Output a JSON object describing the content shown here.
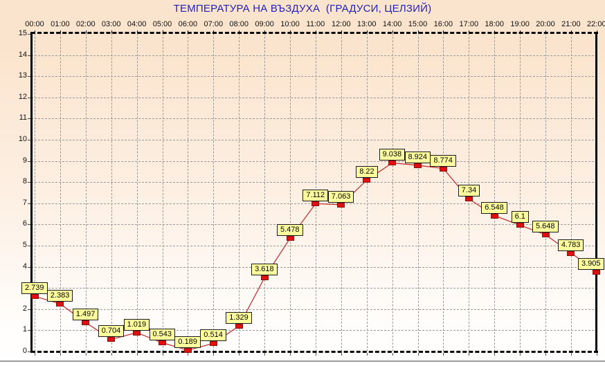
{
  "title": "ТЕМПЕРАТУРА НА ВЪЗДУХА  (ГРАДУСИ, ЦЕЛЗИЙ)",
  "chart_data": {
    "type": "line",
    "title": "ТЕМПЕРАТУРА НА ВЪЗДУХА  (ГРАДУСИ, ЦЕЛЗИЙ)",
    "x": [
      "00:00",
      "01:00",
      "02:00",
      "03:00",
      "04:00",
      "05:00",
      "06:00",
      "07:00",
      "08:00",
      "09:00",
      "10:00",
      "11:00",
      "12:00",
      "13:00",
      "14:00",
      "15:00",
      "16:00",
      "17:00",
      "18:00",
      "19:00",
      "20:00",
      "21:00",
      "22:00"
    ],
    "values": [
      2.739,
      2.383,
      1.497,
      0.704,
      1.019,
      0.543,
      0.189,
      0.514,
      1.329,
      3.618,
      5.478,
      7.112,
      7.063,
      8.22,
      9.038,
      8.924,
      8.774,
      7.34,
      6.548,
      6.1,
      5.648,
      4.783,
      3.905
    ],
    "point_labels": [
      "2.739",
      "2.383",
      "1.497",
      "0.704",
      "1.019",
      "0.543",
      "0.189",
      "0.514",
      "1.329",
      "3.618",
      "5.478",
      "7.112",
      "7.063",
      "8.22",
      "9.038",
      "8.924",
      "8.774",
      "7.34",
      "6.548",
      "6.1",
      "5.648",
      "4.783",
      "3.905"
    ],
    "xlabel": "",
    "ylabel": "",
    "ylim": [
      0,
      15
    ],
    "y_tick_labels": [
      "0",
      "1",
      "2",
      "3",
      "4",
      "5",
      "6",
      "7",
      "8",
      "9",
      "10",
      "11",
      "12",
      "13",
      "14",
      "15"
    ],
    "grid": "dashed-both-axes",
    "legend": "none",
    "marker": "red-square",
    "point_label_style": "yellow-box",
    "colors": {
      "background_top": "#fbe4cd",
      "background_bottom": "#ffffff",
      "title": "#2222b8",
      "line": "#c23535",
      "marker_fill": "#e01010",
      "marker_border": "#8b1010",
      "point_label_bg": "#ffff9e",
      "point_label_border": "#1a1a1a",
      "gridline": "#999999",
      "axis": "#000000"
    }
  }
}
